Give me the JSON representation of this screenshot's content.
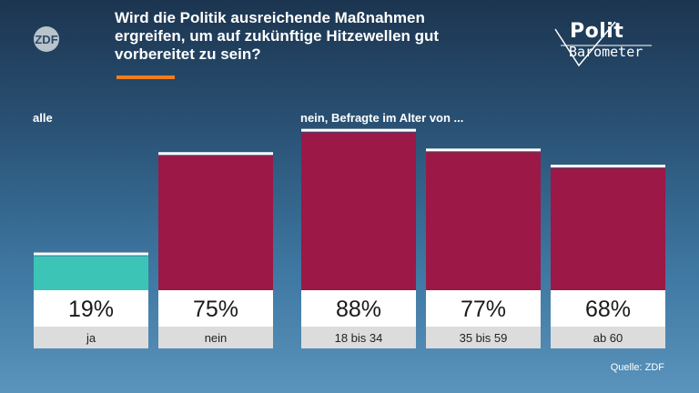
{
  "header": {
    "title_lines": [
      "Wird die Politik ausreichende Maßnahmen",
      "ergreifen, um auf zukünftige Hitzewellen gut",
      "vorbereitet zu sein?"
    ],
    "broadcaster_logo": "ZDF",
    "brand_line1": "Polit",
    "brand_line2": "Barometer"
  },
  "groups": {
    "left": "alle",
    "right": "nein, Befragte im Alter von ..."
  },
  "colors": {
    "ja": "#3cc4b6",
    "nein": "#9b1847",
    "accent": "#f07e1e"
  },
  "source": "Quelle: ZDF",
  "chart_data": {
    "type": "bar",
    "categories": [
      "ja",
      "nein",
      "18 bis 34",
      "35 bis 59",
      "ab 60"
    ],
    "values": [
      19,
      75,
      88,
      77,
      68
    ],
    "value_labels": [
      "19%",
      "75%",
      "88%",
      "77%",
      "68%"
    ],
    "bar_colors": [
      "#3cc4b6",
      "#9b1847",
      "#9b1847",
      "#9b1847",
      "#9b1847"
    ],
    "ylim": [
      0,
      100
    ],
    "title": "Wird die Politik ausreichende Maßnahmen ergreifen, um auf zukünftige Hitzewellen gut vorbereitet zu sein?",
    "xlabel": "",
    "ylabel": ""
  }
}
